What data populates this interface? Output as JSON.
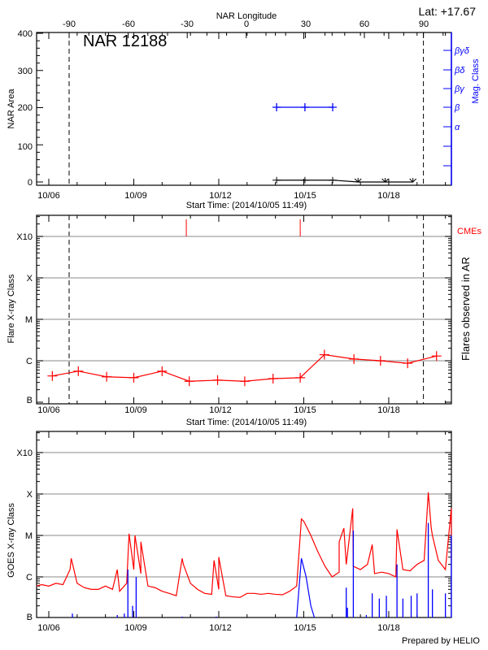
{
  "chart_data": [
    {
      "type": "line",
      "title": "NAR 12188",
      "latitude_label": "Lat: +17.67",
      "top_axis_label": "NAR Longitude",
      "top_axis_ticks": [
        "-90",
        "-60",
        "-30",
        "0",
        "30",
        "60",
        "90"
      ],
      "xlabel": "Start Time: (2014/10/05 11:49)",
      "x_tick_labels": [
        "10/06",
        "10/09",
        "10/12",
        "10/15",
        "10/18"
      ],
      "ylabel": "NAR Area",
      "y_tick_labels": [
        "0",
        "100",
        "200",
        "300",
        "400"
      ],
      "ylim": [
        0,
        400
      ],
      "y2label": "Mag. Class",
      "y2_tick_labels": [
        "α",
        "β",
        "βγ",
        "βδ",
        "βγδ"
      ],
      "limb_longitudes": [
        -90,
        90
      ],
      "colors": {
        "area": "#000000",
        "mag_class": "#0000ff"
      },
      "area_series": {
        "times": [
          "10/14 01:00",
          "10/15 01:00",
          "10/16 00:30",
          "10/16 22:00",
          "10/17 21:00",
          "10/18 20:30"
        ],
        "values": [
          5,
          5,
          5,
          0,
          0,
          0
        ]
      },
      "mag_class_series": {
        "times": [
          "10/14 01:00",
          "10/15 01:00",
          "10/16 00:30"
        ],
        "values": [
          "β",
          "β",
          "β"
        ]
      }
    },
    {
      "type": "line",
      "xlabel": "Start Time: (2014/10/05 11:49)",
      "x_tick_labels": [
        "10/06",
        "10/09",
        "10/12",
        "10/15",
        "10/18"
      ],
      "ylabel": "Flare X-ray Class",
      "y_tick_labels": [
        "B",
        "C",
        "M",
        "X",
        "X10"
      ],
      "y2label": "Flares observed in AR",
      "cme_label": "CMEs",
      "y_scale": "log",
      "grid": true,
      "colors": {
        "flares": "#ff0000",
        "cmes": "#ff0000",
        "grid": "#a0a0a0"
      },
      "flares": {
        "times": [
          "10/06 03:00",
          "10/07 01:00",
          "10/08 01:00",
          "10/09 00:00",
          "10/10 00:00",
          "10/10 23:00",
          "10/11 23:00",
          "10/12 22:00",
          "10/13 22:00",
          "10/14 21:00",
          "10/15 17:30",
          "10/16 18:30",
          "10/17 17:00",
          "10/18 16:00",
          "10/19 16:30"
        ],
        "values": [
          "B4.3",
          "B5.6",
          "B4.1",
          "B3.9",
          "B5.6",
          "B3.2",
          "B3.4",
          "B3.2",
          "B3.7",
          "B3.9",
          "C1.4",
          "C1.1",
          "C1.0",
          "B8.7",
          "C1.3"
        ]
      },
      "cme_times": [
        "10/10 20:30",
        "10/14 21:00"
      ]
    },
    {
      "type": "line",
      "x_tick_labels": [
        "10/06",
        "10/09",
        "10/12",
        "10/15",
        "10/18"
      ],
      "ylabel": "GOES X-ray Class",
      "y_tick_labels": [
        "B",
        "C",
        "M",
        "X",
        "X10"
      ],
      "y_scale": "log",
      "grid": true,
      "credit": "Prepared by HELIO",
      "colors": {
        "long_channel": "#ff0000",
        "short_channel": "#0000ff",
        "grid": "#a0a0a0"
      },
      "long_channel": {
        "times": [
          "10/05 12:00",
          "10/05 18:00",
          "10/06 00:00",
          "10/06 06:00",
          "10/06 12:00",
          "10/06 18:00",
          "10/07 00:00",
          "10/07 06:00",
          "10/07 12:00",
          "10/07 18:00",
          "10/08 00:00",
          "10/08 06:00",
          "10/08 12:00",
          "10/08 18:00",
          "10/09 00:00",
          "10/09 06:00",
          "10/09 12:00",
          "10/09 18:00",
          "10/10 00:00",
          "10/10 06:00",
          "10/10 12:00",
          "10/10 18:00",
          "10/11 00:00",
          "10/11 06:00",
          "10/11 12:00",
          "10/11 18:00",
          "10/12 00:00",
          "10/12 06:00",
          "10/12 12:00",
          "10/12 18:00",
          "10/13 00:00",
          "10/13 06:00",
          "10/13 12:00",
          "10/13 18:00",
          "10/14 00:00",
          "10/14 06:00",
          "10/14 12:00",
          "10/14 18:00",
          "10/15 00:00",
          "10/15 06:00",
          "10/15 12:00",
          "10/15 18:00",
          "10/16 00:00",
          "10/16 06:00",
          "10/16 12:00",
          "10/16 18:00",
          "10/17 00:00",
          "10/17 06:00",
          "10/17 12:00",
          "10/17 18:00",
          "10/18 00:00",
          "10/18 06:00",
          "10/18 12:00",
          "10/18 18:00",
          "10/19 00:00",
          "10/19 06:00",
          "10/19 12:00",
          "10/19 18:00",
          "10/20 00:00",
          "10/20 06:00"
        ],
        "values": [
          "B6.0",
          "B6.5",
          "B6.0",
          "B7.0",
          "B6.5",
          "C1.5",
          "B7.0",
          "B5.5",
          "B5.0",
          "B5.0",
          "B6.0",
          "B5.0",
          "B4.5",
          "B7.0",
          "C1.5",
          "C1.2",
          "B6.0",
          "B5.5",
          "B4.5",
          "B4.0",
          "B3.5",
          "C2.0",
          "B7.0",
          "B5.0",
          "B4.0",
          "B3.8",
          "B5.0",
          "B3.5",
          "B3.3",
          "B3.2",
          "B4.0",
          "B4.0",
          "B3.8",
          "B4.0",
          "B3.8",
          "B3.7",
          "B4.5",
          "B6.0",
          "M2.2",
          "M1.0",
          "C4.0",
          "C1.8",
          "C1.0",
          "C1.3",
          "C2.0",
          "C1.8",
          "C1.5",
          "C2.0",
          "C1.2",
          "C1.3",
          "C1.2",
          "C1.0",
          "C1.5",
          "C1.4",
          "C2.0",
          "C2.5",
          "M1.5",
          "C2.5",
          "C1.5",
          "C2.5"
        ],
        "spikes": {
          "times": [
            "10/06 19:00",
            "10/08 10:00",
            "10/08 20:00",
            "10/09 01:00",
            "10/09 06:00",
            "10/10 17:00",
            "10/11 20:00",
            "10/12 00:00",
            "10/14 22:00",
            "10/16 06:00",
            "10/16 10:00",
            "10/16 17:30",
            "10/17 10:00",
            "10/18 07:00",
            "10/19 09:30",
            "10/19 13:00",
            "10/20 05:00"
          ],
          "values": [
            "C2.8",
            "C1.5",
            "M1.1",
            "M1.0",
            "C7.0",
            "C2.8",
            "C2.5",
            "C3.0",
            "M2.5",
            "C7.0",
            "M1.5",
            "M4.5",
            "C6.0",
            "M1.4",
            "X1.1",
            "M1.0",
            "M4.5"
          ]
        }
      },
      "short_channel": {
        "floor": "A5.0",
        "times": [
          "10/14 18:00",
          "10/14 22:00",
          "10/15 02:00",
          "10/15 06:00",
          "10/15 09:00"
        ],
        "values": [
          "A5.0",
          "C2.8",
          "C1.0",
          "B2.0",
          "A5.0"
        ],
        "spikes": {
          "times": [
            "10/06 20:00",
            "10/08 10:00",
            "10/08 16:00",
            "10/08 19:00",
            "10/08 23:00",
            "10/09 02:00",
            "10/10 17:00",
            "10/11 22:00",
            "10/16 12:00",
            "10/16 13:00",
            "10/16 18:00",
            "10/17 05:00",
            "10/17 10:00",
            "10/17 16:00",
            "10/17 22:00",
            "10/18 07:00",
            "10/18 12:00",
            "10/18 19:00",
            "10/19 00:00",
            "10/19 09:30",
            "10/19 13:00",
            "10/20 00:00",
            "10/20 05:00"
          ],
          "values": [
            "B1.3",
            "B1.2",
            "B1.3",
            "C1.5",
            "B2.0",
            "C1.0",
            "B1.1",
            "B1.1",
            "B5.5",
            "B1.8",
            "M1.3",
            "B1.2",
            "B4.0",
            "B3.0",
            "B3.5",
            "C2.0",
            "B3.0",
            "B3.5",
            "B4.0",
            "M2.0",
            "B5.0",
            "B4.0",
            "M1.0"
          ]
        }
      }
    }
  ]
}
